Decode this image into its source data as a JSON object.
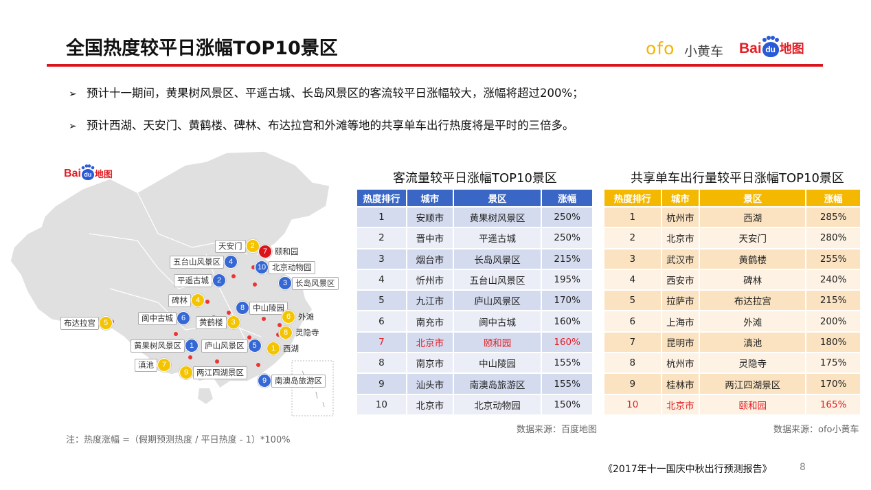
{
  "header": {
    "title": "全国热度较平日涨幅TOP10景区",
    "logo_ofo": "ofo",
    "logo_ofo_cn": "小黄车",
    "logo_baidu_bai": "Bai",
    "logo_baidu_du": "du",
    "logo_baidu_map": "地图"
  },
  "bullets": [
    "预计十一期间，黄果树风景区、平遥古城、长岛风景区的客流较平日涨幅较大，涨幅将超过200%；",
    "预计西湖、天安门、黄鹤楼、碑林、布达拉宫和外滩等地的共享单车出行热度将是平时的三倍多。"
  ],
  "bullet_marker": "➢",
  "map": {
    "logo_bai": "Bai",
    "logo_du": "du",
    "logo_map": "地图",
    "labels": [
      {
        "name": "天安门",
        "num": "2",
        "color": "y"
      },
      {
        "name": "颐和园",
        "num": "7",
        "color": "r"
      },
      {
        "name": "五台山风景区",
        "num": "4",
        "color": "b"
      },
      {
        "name": "北京动物园",
        "num": "10",
        "color": "b"
      },
      {
        "name": "平遥古城",
        "num": "2",
        "color": "b"
      },
      {
        "name": "长岛风景区",
        "num": "3",
        "color": "b"
      },
      {
        "name": "碑林",
        "num": "4",
        "color": "y"
      },
      {
        "name": "中山陵园",
        "num": "8",
        "color": "b"
      },
      {
        "name": "阆中古城",
        "num": "6",
        "color": "b"
      },
      {
        "name": "黄鹤楼",
        "num": "3",
        "color": "y"
      },
      {
        "name": "外滩",
        "num": "6",
        "color": "y"
      },
      {
        "name": "布达拉宫",
        "num": "5",
        "color": "y"
      },
      {
        "name": "灵隐寺",
        "num": "8",
        "color": "y"
      },
      {
        "name": "黄果树风景区",
        "num": "1",
        "color": "b"
      },
      {
        "name": "庐山风景区",
        "num": "5",
        "color": "b"
      },
      {
        "name": "西湖",
        "num": "1",
        "color": "y"
      },
      {
        "name": "滇池",
        "num": "7",
        "color": "y"
      },
      {
        "name": "两江四湖景区",
        "num": "9",
        "color": "y"
      },
      {
        "name": "南澳岛旅游区",
        "num": "9",
        "color": "b"
      }
    ]
  },
  "table1": {
    "title": "客流量较平日涨幅TOP10景区",
    "headers": [
      "热度排行",
      "城市",
      "景区",
      "涨幅"
    ],
    "rows": [
      [
        "1",
        "安顺市",
        "黄果树风景区",
        "250%"
      ],
      [
        "2",
        "晋中市",
        "平遥古城",
        "250%"
      ],
      [
        "3",
        "烟台市",
        "长岛风景区",
        "215%"
      ],
      [
        "4",
        "忻州市",
        "五台山风景区",
        "195%"
      ],
      [
        "5",
        "九江市",
        "庐山风景区",
        "170%"
      ],
      [
        "6",
        "南充市",
        "阆中古城",
        "160%"
      ],
      [
        "7",
        "北京市",
        "颐和园",
        "160%"
      ],
      [
        "8",
        "南京市",
        "中山陵园",
        "155%"
      ],
      [
        "9",
        "汕头市",
        "南澳岛旅游区",
        "155%"
      ],
      [
        "10",
        "北京市",
        "北京动物园",
        "150%"
      ]
    ],
    "highlight_row": 7,
    "source": "数据来源：百度地图"
  },
  "table2": {
    "title": "共享单车出行量较平日涨幅TOP10景区",
    "headers": [
      "热度排行",
      "城市",
      "景区",
      "涨幅"
    ],
    "rows": [
      [
        "1",
        "杭州市",
        "西湖",
        "285%"
      ],
      [
        "2",
        "北京市",
        "天安门",
        "280%"
      ],
      [
        "3",
        "武汉市",
        "黄鹤楼",
        "255%"
      ],
      [
        "4",
        "西安市",
        "碑林",
        "240%"
      ],
      [
        "5",
        "拉萨市",
        "布达拉宫",
        "215%"
      ],
      [
        "6",
        "上海市",
        "外滩",
        "200%"
      ],
      [
        "7",
        "昆明市",
        "滇池",
        "180%"
      ],
      [
        "8",
        "杭州市",
        "灵隐寺",
        "175%"
      ],
      [
        "9",
        "桂林市",
        "两江四湖景区",
        "170%"
      ],
      [
        "10",
        "北京市",
        "颐和园",
        "165%"
      ]
    ],
    "highlight_row": 10,
    "source": "数据来源：ofo小黄车"
  },
  "note": "注：热度涨幅 =（假期预测热度 / 平日热度 - 1）*100%",
  "footer": "《2017年十一国庆中秋出行预测报告》",
  "page_number": "8",
  "colors": {
    "accent_red": "#d9141b",
    "table1_header": "#3a67c6",
    "table2_header": "#f5b800",
    "baidu_blue": "#2a5bd7",
    "ofo_yellow": "#f5b400"
  }
}
